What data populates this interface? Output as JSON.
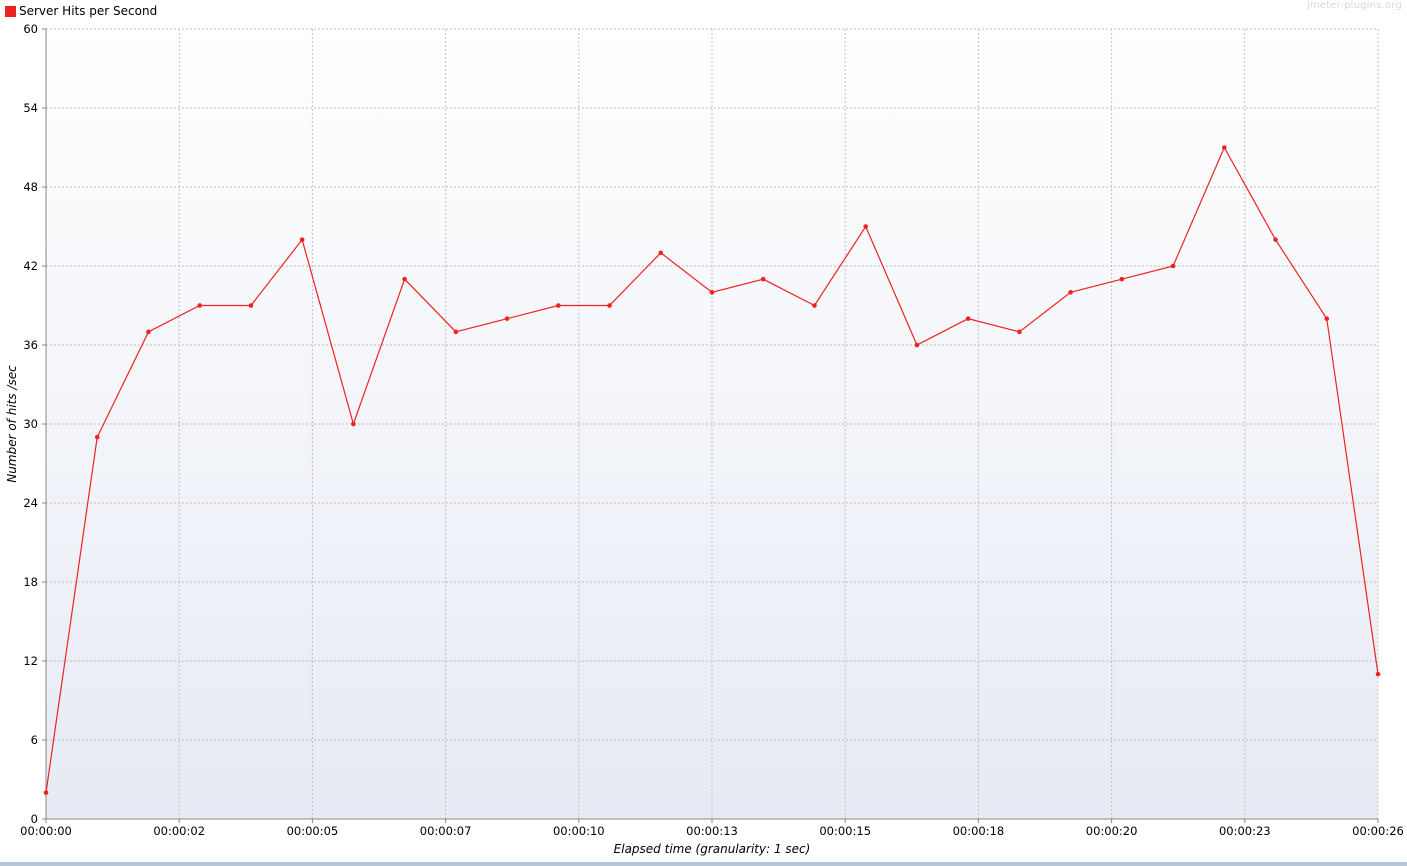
{
  "watermark": "jmeter-plugins.org",
  "legend": {
    "label": "Server Hits per Second",
    "color": "#ee2222"
  },
  "chart_data": {
    "type": "line",
    "title": "",
    "xlabel": "Elapsed time (granularity: 1 sec)",
    "ylabel": "Number of hits /sec",
    "ylim": [
      0,
      60
    ],
    "xlim": [
      0,
      26
    ],
    "grid": true,
    "legend_position": "top-left",
    "y_ticks": [
      0,
      6,
      12,
      18,
      24,
      30,
      36,
      42,
      48,
      54,
      60
    ],
    "x_ticks": [
      {
        "value": 0,
        "label": "00:00:00"
      },
      {
        "value": 2.6,
        "label": "00:00:02"
      },
      {
        "value": 5.2,
        "label": "00:00:05"
      },
      {
        "value": 7.8,
        "label": "00:00:07"
      },
      {
        "value": 10.4,
        "label": "00:00:10"
      },
      {
        "value": 13,
        "label": "00:00:13"
      },
      {
        "value": 15.6,
        "label": "00:00:15"
      },
      {
        "value": 18.2,
        "label": "00:00:18"
      },
      {
        "value": 20.8,
        "label": "00:00:20"
      },
      {
        "value": 23.4,
        "label": "00:00:23"
      },
      {
        "value": 26,
        "label": "00:00:26"
      }
    ],
    "series": [
      {
        "name": "Server Hits per Second",
        "color": "#ee2222",
        "x": [
          0,
          1,
          2,
          3,
          4,
          5,
          6,
          7,
          8,
          9,
          10,
          11,
          12,
          13,
          14,
          15,
          16,
          17,
          18,
          19,
          20,
          21,
          22,
          23,
          24,
          25,
          26
        ],
        "values": [
          2,
          29,
          37,
          39,
          39,
          44,
          30,
          41,
          37,
          38,
          39,
          39,
          43,
          40,
          41,
          39,
          45,
          36,
          38,
          37,
          40,
          41,
          42,
          51,
          44,
          38,
          11
        ]
      }
    ]
  }
}
